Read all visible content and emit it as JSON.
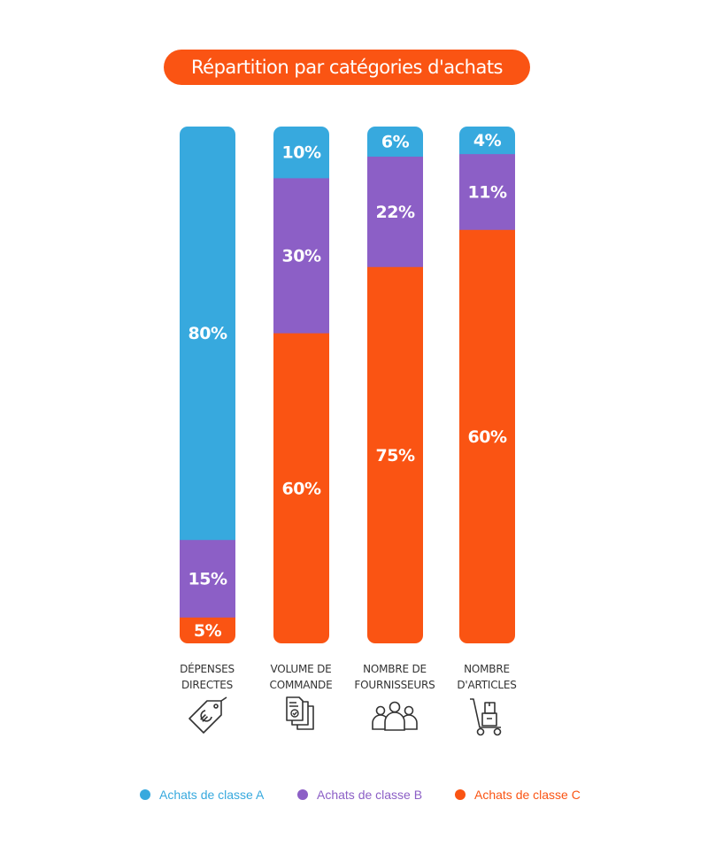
{
  "title": "Répartition par catégories d'achats",
  "colors": {
    "accent": "#FA5413",
    "classe_a": "#37A9DE",
    "classe_b": "#8C5FC6",
    "classe_c": "#FA5413"
  },
  "chart_data": {
    "type": "bar",
    "stacked": true,
    "orientation": "vertical",
    "title": "Répartition par catégories d'achats",
    "categories": [
      "DÉPENSES DIRECTES",
      "VOLUME DE COMMANDE",
      "NOMBRE DE FOURNISSEURS",
      "NOMBRE D'ARTICLES"
    ],
    "category_lines": [
      [
        "DÉPENSES",
        "DIRECTES"
      ],
      [
        "VOLUME DE",
        "COMMANDE"
      ],
      [
        "NOMBRE DE",
        "FOURNISSEURS"
      ],
      [
        "NOMBRE",
        "D'ARTICLES"
      ]
    ],
    "category_icons": [
      "euro-price-tag-icon",
      "order-documents-icon",
      "people-group-icon",
      "hand-truck-boxes-icon"
    ],
    "series": [
      {
        "name": "Achats de classe A",
        "values": [
          80,
          10,
          6,
          4
        ],
        "labels": [
          "80%",
          "10%",
          "6%",
          "4%"
        ],
        "color": "#37A9DE"
      },
      {
        "name": "Achats de classe B",
        "values": [
          15,
          30,
          22,
          11
        ],
        "labels": [
          "15%",
          "30%",
          "22%",
          "11%"
        ],
        "color": "#8C5FC6"
      },
      {
        "name": "Achats de classe C",
        "values": [
          5,
          60,
          75,
          60
        ],
        "labels": [
          "5%",
          "60%",
          "75%",
          "60%"
        ],
        "color": "#FA5413"
      }
    ],
    "legend_position": "bottom",
    "grid": false
  }
}
